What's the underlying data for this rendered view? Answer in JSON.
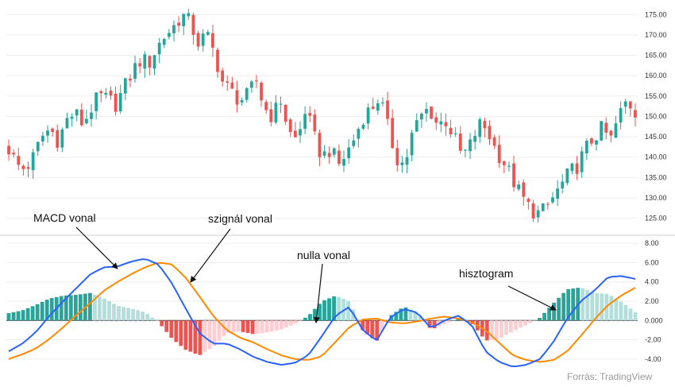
{
  "colors": {
    "up": "#26a69a",
    "down": "#ef5350",
    "hist_up_strong": "#26a69a",
    "hist_up_weak": "#b2dfdb",
    "hist_down_strong": "#ef5350",
    "hist_down_weak": "#ffcdd2",
    "macd_line": "#2962ff",
    "signal_line": "#ff8a00",
    "grid": "#eeeeee",
    "axis_text": "#333333"
  },
  "chart_data": [
    {
      "type": "candlestick",
      "panel": "price",
      "grid": true,
      "y_axis_side": "right",
      "ylim": [
        122,
        177
      ],
      "yticks": [
        "175.00",
        "170.00",
        "165.00",
        "160.00",
        "155.00",
        "150.00",
        "145.00",
        "140.00",
        "135.00",
        "130.00",
        "125.00"
      ],
      "close_path": [
        142,
        138,
        137,
        140,
        145,
        147,
        144,
        149,
        151,
        148,
        152,
        155,
        154,
        153,
        157,
        161,
        164,
        163,
        167,
        170,
        172,
        175,
        173,
        168,
        170,
        165,
        158,
        156,
        154,
        155,
        159,
        152,
        150,
        154,
        146,
        144,
        152,
        145,
        140,
        142,
        138,
        141,
        145,
        150,
        152,
        155,
        147,
        140,
        138,
        146,
        150,
        152,
        148,
        149,
        145,
        140,
        143,
        148,
        147,
        142,
        139,
        135,
        131,
        128,
        126,
        127,
        130,
        133,
        136,
        138,
        142,
        145,
        147,
        144,
        150,
        154,
        151
      ]
    },
    {
      "type": "macd",
      "panel": "indicator",
      "grid": true,
      "y_axis_side": "right",
      "ylim": [
        -5,
        8.5
      ],
      "yticks": [
        "8.00",
        "6.00",
        "4.00",
        "2.00",
        "0.000",
        "-2.00",
        "-4.00"
      ],
      "macd_path": [
        -3.2,
        -2.4,
        -1.2,
        0.5,
        2.0,
        3.4,
        4.8,
        5.5,
        5.6,
        6.1,
        6.4,
        5.8,
        3.8,
        1.2,
        -1.3,
        -2.4,
        -2.4,
        -3.0,
        -3.8,
        -4.3,
        -4.6,
        -4.4,
        -3.6,
        -1.6,
        0.5,
        1.4,
        -1.0,
        -2.1,
        0.3,
        1.2,
        0.8,
        -0.8,
        0.0,
        0.5,
        -0.5,
        -3.2,
        -4.3,
        -4.8,
        -4.6,
        -4.0,
        -2.2,
        0.2,
        2.0,
        3.1,
        4.5,
        4.6,
        4.3
      ],
      "signal_path": [
        -4.0,
        -3.5,
        -2.9,
        -1.9,
        -0.7,
        0.6,
        1.8,
        3.1,
        4.0,
        4.8,
        5.5,
        6.0,
        5.8,
        4.4,
        2.5,
        0.5,
        -1.0,
        -1.8,
        -2.3,
        -3.0,
        -3.6,
        -4.0,
        -4.1,
        -3.7,
        -2.2,
        -0.7,
        0.1,
        0.2,
        -0.2,
        -0.3,
        -0.1,
        0.2,
        0.4,
        0.2,
        -0.2,
        -1.0,
        -2.3,
        -3.6,
        -4.1,
        -4.3,
        -4.1,
        -3.2,
        -1.6,
        0.1,
        1.6,
        2.6,
        3.4
      ]
    }
  ],
  "annotations": {
    "macd_label": "MACD vonal",
    "signal_label": "szignál vonal",
    "zero_label": "nulla vonal",
    "histogram_label": "hisztogram",
    "source": "Forrás: TradingView"
  }
}
